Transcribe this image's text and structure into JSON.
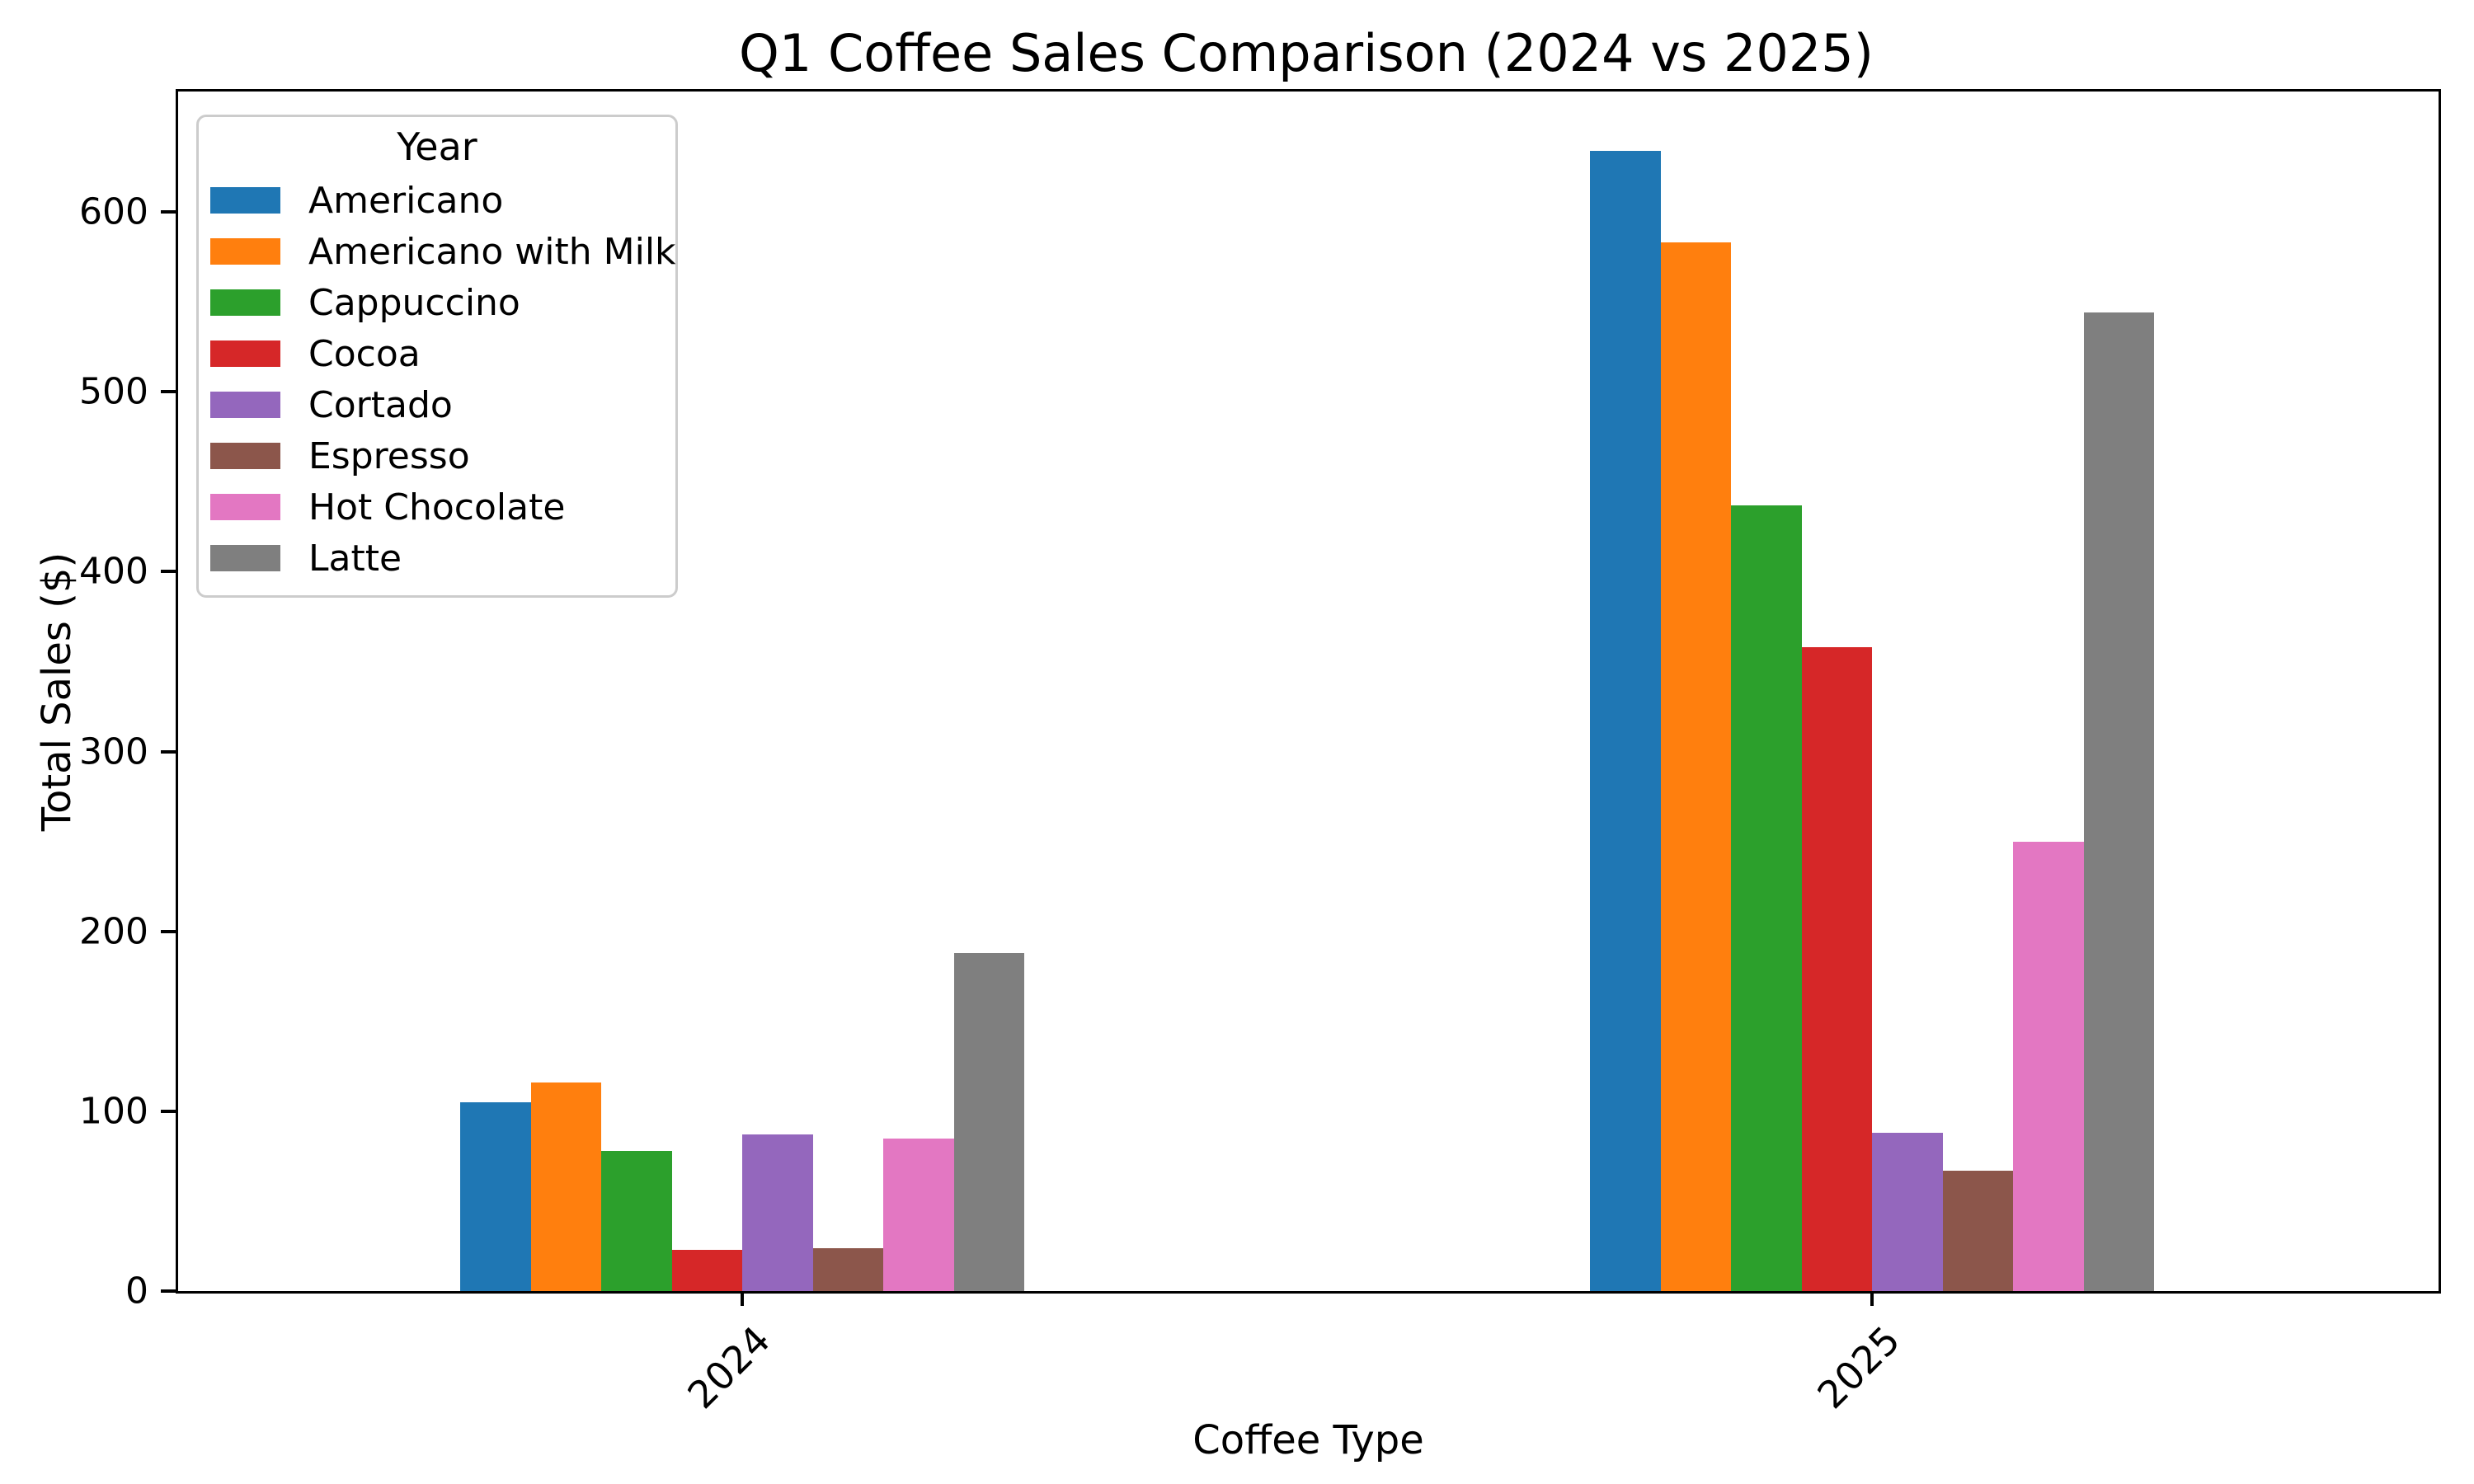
{
  "title": "Q1 Coffee Sales Comparison (2024 vs 2025)",
  "axes": {
    "x_label": "Coffee Type",
    "y_label": "Total Sales ($)",
    "y_ticks": [
      0,
      100,
      200,
      300,
      400,
      500,
      600
    ]
  },
  "legend": {
    "title": "Year"
  },
  "chart_data": {
    "type": "bar",
    "title": "Q1 Coffee Sales Comparison (2024 vs 2025)",
    "xlabel": "Coffee Type",
    "ylabel": "Total Sales ($)",
    "categories": [
      "2024",
      "2025"
    ],
    "series": [
      {
        "name": "Americano",
        "color": "#1f77b4",
        "values": [
          105,
          634
        ]
      },
      {
        "name": "Americano with Milk",
        "color": "#ff7f0e",
        "values": [
          116,
          583
        ]
      },
      {
        "name": "Cappuccino",
        "color": "#2ca02c",
        "values": [
          78,
          437
        ]
      },
      {
        "name": "Cocoa",
        "color": "#d62728",
        "values": [
          23,
          358
        ]
      },
      {
        "name": "Cortado",
        "color": "#9467bd",
        "values": [
          87,
          88
        ]
      },
      {
        "name": "Espresso",
        "color": "#8c564b",
        "values": [
          24,
          67
        ]
      },
      {
        "name": "Hot Chocolate",
        "color": "#e377c2",
        "values": [
          85,
          250
        ]
      },
      {
        "name": "Latte",
        "color": "#7f7f7f",
        "values": [
          188,
          544
        ]
      }
    ],
    "ylim": [
      0,
      667
    ],
    "yticks": [
      0,
      100,
      200,
      300,
      400,
      500,
      600
    ],
    "legend_title": "Year",
    "legend_position": "upper left",
    "grid": false,
    "xtick_rotation": 45
  }
}
